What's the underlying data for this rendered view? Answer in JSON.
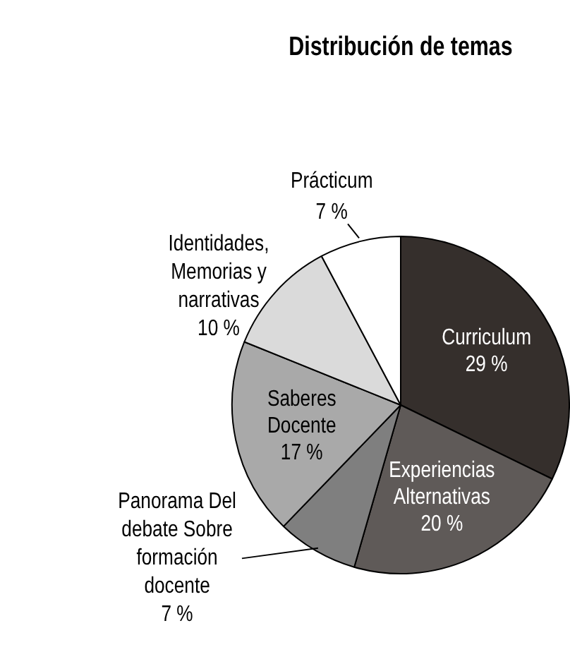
{
  "chart_data": {
    "type": "pie",
    "title": "Distribución de temas",
    "categories": [
      "Curriculum",
      "Experiencias Alternativas",
      "Panorama Del debate Sobre formación docente",
      "Saberes Docente",
      "Identidades, Memorias y narrativas",
      "Prácticum"
    ],
    "values": [
      29,
      20,
      7,
      17,
      10,
      7
    ],
    "value_labels": [
      "29 %",
      "20 %",
      "7 %",
      "17 %",
      "10 %",
      "7 %"
    ],
    "colors": [
      "#352f2c",
      "#5f5a58",
      "#7f7f7f",
      "#a9a9a9",
      "#dadada",
      "#ffffff"
    ],
    "legend": false
  }
}
